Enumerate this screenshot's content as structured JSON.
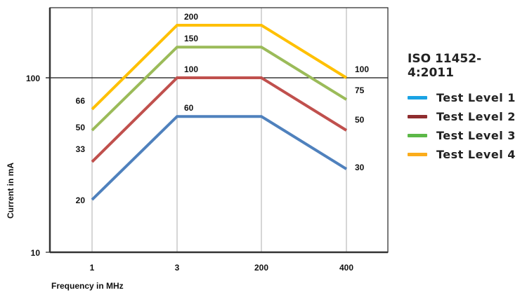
{
  "chart_data": {
    "type": "line",
    "title": "ISO 11452-4:2011",
    "xlabel": "Frequency in MHz",
    "ylabel": "Current in mA",
    "x": [
      "1",
      "3",
      "200",
      "400"
    ],
    "yscale": "log",
    "ylim": [
      10,
      250
    ],
    "y_ticks": [
      "10",
      "100"
    ],
    "grid": {
      "vertical": true,
      "horizontal_at": [
        100
      ]
    },
    "legend_position": "right",
    "series": [
      {
        "name": "Test Level 1",
        "values": [
          20,
          60,
          60,
          30
        ],
        "line_color": "#4f81bd",
        "legend_color": "#1aa3e4",
        "labels": [
          "20",
          "60",
          "",
          "30"
        ]
      },
      {
        "name": "Test Level 2",
        "values": [
          33,
          100,
          100,
          50
        ],
        "line_color": "#c0504d",
        "legend_color": "#8f2d2f",
        "labels": [
          "33",
          "100",
          "",
          "50"
        ]
      },
      {
        "name": "Test Level 3",
        "values": [
          50,
          150,
          150,
          75
        ],
        "line_color": "#9bbb59",
        "legend_color": "#5cb848",
        "labels": [
          "50",
          "150",
          "",
          "75"
        ]
      },
      {
        "name": "Test Level 4",
        "values": [
          66,
          200,
          200,
          100
        ],
        "line_color": "#ffc000",
        "legend_color": "#fbac1b",
        "labels": [
          "66",
          "200",
          "",
          "100"
        ]
      }
    ]
  },
  "legend": {
    "title": "ISO 11452-4:2011",
    "items": [
      {
        "label": "Test Level 1",
        "color": "#1aa3e4"
      },
      {
        "label": "Test Level 2",
        "color": "#8f2d2f"
      },
      {
        "label": "Test Level 3",
        "color": "#5cb848"
      },
      {
        "label": "Test Level 4",
        "color": "#fbac1b"
      }
    ]
  }
}
